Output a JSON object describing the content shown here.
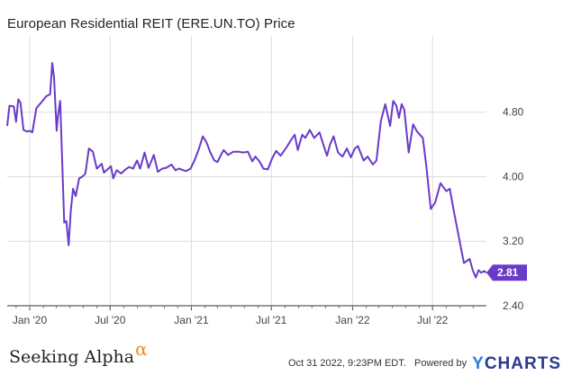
{
  "chart_data": {
    "type": "line",
    "title": "European Residential REIT (ERE.UN.TO) Price",
    "xlabel": "",
    "ylabel": "",
    "y_ticks": [
      "4.80",
      "4.00",
      "3.20",
      "2.40"
    ],
    "y_tick_values": [
      4.8,
      4.0,
      3.2,
      2.4
    ],
    "ylim": [
      2.4,
      5.7
    ],
    "x_range": [
      "2019-11-11",
      "2022-10-31"
    ],
    "x_ticks": [
      {
        "label": "Jan '20",
        "date": "2020-01-01"
      },
      {
        "label": "Jul '20",
        "date": "2020-07-01"
      },
      {
        "label": "Jan '21",
        "date": "2021-01-01"
      },
      {
        "label": "Jul '21",
        "date": "2021-07-01"
      },
      {
        "label": "Jan '22",
        "date": "2022-01-01"
      },
      {
        "label": "Jul '22",
        "date": "2022-07-01"
      }
    ],
    "grid": true,
    "line_color": "#6a3bc8",
    "last_value": "2.81",
    "series": [
      {
        "x": [
          "2019-11-11",
          "2019-11-16",
          "2019-11-26",
          "2019-12-01",
          "2019-12-06",
          "2019-12-11",
          "2019-12-18",
          "2019-12-26",
          "2020-01-01",
          "2020-01-07",
          "2020-01-16",
          "2020-01-27",
          "2020-02-08",
          "2020-02-16",
          "2020-02-21",
          "2020-02-25",
          "2020-03-02",
          "2020-03-05",
          "2020-03-10",
          "2020-03-19",
          "2020-03-24",
          "2020-03-29",
          "2020-04-03",
          "2020-04-08",
          "2020-04-14",
          "2020-04-22",
          "2020-04-29",
          "2020-05-06",
          "2020-05-14",
          "2020-05-23",
          "2020-06-01",
          "2020-06-12",
          "2020-06-17",
          "2020-06-25",
          "2020-07-03",
          "2020-07-08",
          "2020-07-16",
          "2020-07-26",
          "2020-08-05",
          "2020-08-13",
          "2020-08-22",
          "2020-08-31",
          "2020-09-07",
          "2020-09-17",
          "2020-09-26",
          "2020-10-08",
          "2020-10-17",
          "2020-10-27",
          "2020-11-05",
          "2020-11-17",
          "2020-11-26",
          "2020-12-04",
          "2020-12-14",
          "2020-12-20",
          "2020-12-30",
          "2021-01-08",
          "2021-01-17",
          "2021-01-27",
          "2021-02-04",
          "2021-02-13",
          "2021-02-22",
          "2021-03-01",
          "2021-03-09",
          "2021-03-15",
          "2021-03-25",
          "2021-04-06",
          "2021-04-18",
          "2021-04-28",
          "2021-05-09",
          "2021-05-19",
          "2021-05-26",
          "2021-06-04",
          "2021-06-13",
          "2021-06-23",
          "2021-07-03",
          "2021-07-12",
          "2021-07-22",
          "2021-08-05",
          "2021-08-14",
          "2021-08-23",
          "2021-08-30",
          "2021-09-09",
          "2021-09-16",
          "2021-09-26",
          "2021-10-06",
          "2021-10-18",
          "2021-10-26",
          "2021-11-04",
          "2021-11-11",
          "2021-11-19",
          "2021-11-29",
          "2021-12-09",
          "2021-12-19",
          "2021-12-28",
          "2022-01-06",
          "2022-01-13",
          "2022-01-26",
          "2022-02-04",
          "2022-02-16",
          "2022-02-24",
          "2022-03-06",
          "2022-03-16",
          "2022-03-27",
          "2022-04-03",
          "2022-04-10",
          "2022-04-16",
          "2022-04-22",
          "2022-04-28",
          "2022-05-08",
          "2022-05-18",
          "2022-05-27",
          "2022-06-09",
          "2022-06-17",
          "2022-06-27",
          "2022-07-07",
          "2022-07-19",
          "2022-08-01",
          "2022-08-09",
          "2022-08-19",
          "2022-08-30",
          "2022-09-10",
          "2022-09-23",
          "2022-09-30",
          "2022-10-07",
          "2022-10-13",
          "2022-10-19",
          "2022-10-26",
          "2022-10-31"
        ],
        "values": [
          4.63,
          4.88,
          4.87,
          4.68,
          4.96,
          4.92,
          4.58,
          4.56,
          4.57,
          4.55,
          4.85,
          4.92,
          5.0,
          5.02,
          5.41,
          5.23,
          4.57,
          4.76,
          4.94,
          3.43,
          3.45,
          3.15,
          3.58,
          3.85,
          3.76,
          3.98,
          4.0,
          4.04,
          4.35,
          4.31,
          4.1,
          4.16,
          4.05,
          4.09,
          4.13,
          3.98,
          4.08,
          4.04,
          4.09,
          4.12,
          4.1,
          4.2,
          4.1,
          4.3,
          4.11,
          4.27,
          4.06,
          4.1,
          4.11,
          4.15,
          4.08,
          4.1,
          4.08,
          4.07,
          4.1,
          4.2,
          4.33,
          4.5,
          4.43,
          4.3,
          4.2,
          4.18,
          4.27,
          4.33,
          4.27,
          4.31,
          4.31,
          4.3,
          4.31,
          4.19,
          4.25,
          4.19,
          4.1,
          4.09,
          4.23,
          4.32,
          4.26,
          4.37,
          4.45,
          4.52,
          4.33,
          4.52,
          4.48,
          4.58,
          4.48,
          4.55,
          4.41,
          4.26,
          4.4,
          4.5,
          4.3,
          4.25,
          4.35,
          4.24,
          4.35,
          4.38,
          4.2,
          4.25,
          4.15,
          4.2,
          4.69,
          4.9,
          4.63,
          4.94,
          4.88,
          4.73,
          4.9,
          4.83,
          4.3,
          4.65,
          4.56,
          4.48,
          4.13,
          3.6,
          3.68,
          3.92,
          3.82,
          3.85,
          3.55,
          3.24,
          2.93,
          2.98,
          2.84,
          2.75,
          2.84,
          2.81,
          2.83,
          2.81
        ]
      }
    ]
  },
  "footer": {
    "brand": "Seeking Alpha",
    "brand_mark": "α",
    "timestamp": "Oct 31 2022, 9:23PM EDT.",
    "powered_by": "Powered by",
    "ycharts_y": "Y",
    "ycharts_rest": "CHARTS"
  },
  "colors": {
    "line": "#6a3bc8",
    "grid": "#dcdcdc",
    "axis": "#333333",
    "alpha_mark": "#f08a28",
    "ycharts": "#2a3a8f"
  }
}
